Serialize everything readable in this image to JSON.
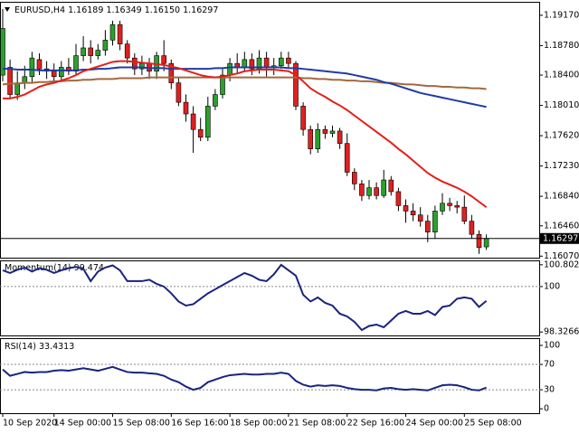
{
  "chart_data": [
    {
      "type": "candlestick",
      "title": "EURUSD,H4",
      "value_labels": {
        "open": "1.16189",
        "high": "1.16349",
        "low": "1.16150",
        "close": "1.16297"
      },
      "categories": [
        "10 Sep 2020",
        null,
        null,
        null,
        null,
        null,
        null,
        "14 Sep 00:00",
        null,
        null,
        null,
        null,
        null,
        null,
        null,
        "15 Sep 08:00",
        null,
        null,
        null,
        null,
        null,
        null,
        null,
        "16 Sep 16:00",
        null,
        null,
        null,
        null,
        null,
        null,
        null,
        "18 Sep 00:00",
        null,
        null,
        null,
        null,
        null,
        null,
        null,
        "21 Sep 08:00",
        null,
        null,
        null,
        null,
        null,
        null,
        null,
        "22 Sep 16:00",
        null,
        null,
        null,
        null,
        null,
        null,
        null,
        "24 Sep 00:00",
        null,
        null,
        null,
        null,
        null,
        null,
        null,
        "25 Sep 08:00",
        null,
        null,
        null
      ],
      "open": [
        1.184,
        1.185,
        1.1815,
        1.183,
        1.1838,
        1.186,
        1.1848,
        1.1845,
        1.1838,
        1.185,
        1.1845,
        1.1865,
        1.1875,
        1.1865,
        1.1872,
        1.1885,
        1.1905,
        1.188,
        1.1862,
        1.1848,
        1.1855,
        1.1845,
        1.1865,
        1.1855,
        1.183,
        1.1805,
        1.179,
        1.177,
        1.176,
        1.18,
        1.1815,
        1.184,
        1.1855,
        1.185,
        1.186,
        1.1848,
        1.1862,
        1.185,
        1.1852,
        1.1862,
        1.1855,
        1.18,
        1.177,
        1.1745,
        1.177,
        1.1765,
        1.1768,
        1.1752,
        1.1715,
        1.17,
        1.1685,
        1.1695,
        1.1685,
        1.1705,
        1.169,
        1.1672,
        1.1665,
        1.166,
        1.1652,
        1.1638,
        1.1665,
        1.1675,
        1.1672,
        1.167,
        1.1652,
        1.1635,
        1.16189
      ],
      "high": [
        1.1925,
        1.186,
        1.1845,
        1.1852,
        1.187,
        1.1868,
        1.1858,
        1.1855,
        1.1858,
        1.1862,
        1.188,
        1.189,
        1.1885,
        1.188,
        1.1898,
        1.191,
        1.191,
        1.1885,
        1.1868,
        1.1865,
        1.1862,
        1.187,
        1.1885,
        1.186,
        1.1838,
        1.1815,
        1.18,
        1.1785,
        1.1812,
        1.1822,
        1.1848,
        1.1862,
        1.1868,
        1.187,
        1.1868,
        1.1872,
        1.187,
        1.1862,
        1.187,
        1.187,
        1.1858,
        1.1805,
        1.1775,
        1.1778,
        1.1775,
        1.1775,
        1.1772,
        1.1765,
        1.172,
        1.1705,
        1.1705,
        1.1702,
        1.1718,
        1.171,
        1.1695,
        1.168,
        1.1675,
        1.167,
        1.166,
        1.1672,
        1.1688,
        1.1682,
        1.1678,
        1.1685,
        1.166,
        1.164,
        1.16349
      ],
      "low": [
        1.1832,
        1.181,
        1.1808,
        1.1822,
        1.183,
        1.184,
        1.1835,
        1.1832,
        1.1832,
        1.184,
        1.184,
        1.1858,
        1.1855,
        1.186,
        1.1865,
        1.1878,
        1.1872,
        1.1855,
        1.184,
        1.184,
        1.1835,
        1.1835,
        1.1845,
        1.1822,
        1.18,
        1.178,
        1.174,
        1.1755,
        1.1755,
        1.1795,
        1.181,
        1.1832,
        1.1842,
        1.1845,
        1.184,
        1.1842,
        1.1838,
        1.184,
        1.1848,
        1.185,
        1.1795,
        1.1762,
        1.1738,
        1.174,
        1.1758,
        1.176,
        1.1745,
        1.171,
        1.1692,
        1.1678,
        1.168,
        1.168,
        1.1682,
        1.1685,
        1.1665,
        1.165,
        1.1652,
        1.1645,
        1.1625,
        1.163,
        1.166,
        1.1665,
        1.1662,
        1.1648,
        1.163,
        1.161,
        1.1615
      ],
      "close": [
        1.19,
        1.1815,
        1.183,
        1.1838,
        1.1862,
        1.1848,
        1.1845,
        1.1838,
        1.185,
        1.1845,
        1.1865,
        1.1875,
        1.1865,
        1.1872,
        1.1885,
        1.1905,
        1.188,
        1.1862,
        1.1848,
        1.1855,
        1.1845,
        1.1865,
        1.1855,
        1.183,
        1.1805,
        1.179,
        1.177,
        1.176,
        1.18,
        1.1815,
        1.184,
        1.1855,
        1.185,
        1.186,
        1.1848,
        1.1862,
        1.185,
        1.1852,
        1.1862,
        1.1855,
        1.18,
        1.177,
        1.1745,
        1.177,
        1.1765,
        1.1768,
        1.1752,
        1.1715,
        1.17,
        1.1685,
        1.1695,
        1.1685,
        1.1705,
        1.169,
        1.1672,
        1.1665,
        1.166,
        1.1652,
        1.1638,
        1.1665,
        1.1675,
        1.1672,
        1.167,
        1.1652,
        1.1635,
        1.1618,
        1.16297
      ],
      "up_color": "#2ca02c",
      "down_color": "#e02020",
      "overlays": [
        {
          "color": "#a5683d",
          "values": [
            1.1828,
            1.1829,
            1.1829,
            1.183,
            1.183,
            1.1831,
            1.1831,
            1.1832,
            1.1832,
            1.1833,
            1.1833,
            1.1834,
            1.1834,
            1.1835,
            1.1835,
            1.1835,
            1.1836,
            1.1836,
            1.1836,
            1.1836,
            1.1837,
            1.1837,
            1.1837,
            1.1837,
            1.1837,
            1.1837,
            1.1837,
            1.1837,
            1.1837,
            1.1837,
            1.1837,
            1.1837,
            1.1837,
            1.1837,
            1.1837,
            1.1837,
            1.1837,
            1.1837,
            1.1837,
            1.1837,
            1.1837,
            1.1836,
            1.1836,
            1.1835,
            1.1835,
            1.1834,
            1.1834,
            1.1833,
            1.1833,
            1.1832,
            1.1832,
            1.1831,
            1.183,
            1.183,
            1.1829,
            1.1828,
            1.1828,
            1.1827,
            1.1826,
            1.1826,
            1.1825,
            1.1825,
            1.1824,
            1.1824,
            1.1823,
            1.1823,
            1.1822
          ]
        },
        {
          "color": "#1f3ca6",
          "values": [
            1.1848,
            1.1848,
            1.1847,
            1.1847,
            1.1847,
            1.1846,
            1.1846,
            1.1846,
            1.1846,
            1.1846,
            1.1846,
            1.1847,
            1.1847,
            1.1848,
            1.1848,
            1.1849,
            1.185,
            1.185,
            1.185,
            1.185,
            1.1849,
            1.1849,
            1.1849,
            1.1848,
            1.1848,
            1.1848,
            1.1848,
            1.1848,
            1.1848,
            1.1849,
            1.1849,
            1.185,
            1.185,
            1.185,
            1.185,
            1.185,
            1.185,
            1.185,
            1.185,
            1.1849,
            1.1849,
            1.1848,
            1.1847,
            1.1846,
            1.1845,
            1.1844,
            1.1843,
            1.1842,
            1.184,
            1.1838,
            1.1836,
            1.1834,
            1.1831,
            1.1829,
            1.1826,
            1.1823,
            1.182,
            1.1817,
            1.1815,
            1.1813,
            1.1811,
            1.1809,
            1.1807,
            1.1805,
            1.1803,
            1.1801,
            1.1799
          ]
        },
        {
          "color": "#e32017",
          "values": [
            1.181,
            1.181,
            1.1812,
            1.1815,
            1.182,
            1.1825,
            1.1828,
            1.183,
            1.1833,
            1.1836,
            1.184,
            1.1845,
            1.1848,
            1.1851,
            1.1854,
            1.1857,
            1.1858,
            1.1858,
            1.1857,
            1.1856,
            1.1855,
            1.1854,
            1.1853,
            1.1851,
            1.1849,
            1.1846,
            1.1843,
            1.184,
            1.1838,
            1.1837,
            1.1838,
            1.184,
            1.1842,
            1.1845,
            1.1846,
            1.1847,
            1.1847,
            1.1847,
            1.1846,
            1.1845,
            1.184,
            1.1832,
            1.1823,
            1.1817,
            1.1812,
            1.1806,
            1.1801,
            1.1795,
            1.1788,
            1.1781,
            1.1774,
            1.1767,
            1.176,
            1.1753,
            1.1745,
            1.1738,
            1.173,
            1.1722,
            1.1714,
            1.1708,
            1.1703,
            1.1699,
            1.1695,
            1.169,
            1.1684,
            1.1677,
            1.167
          ]
        }
      ],
      "ylim": [
        1.1605,
        1.1932
      ],
      "yticks": [
        {
          "value": 1.1917,
          "label": "1.19170"
        },
        {
          "value": 1.1878,
          "label": "1.18780"
        },
        {
          "value": 1.184,
          "label": "1.18400"
        },
        {
          "value": 1.1801,
          "label": "1.18010"
        },
        {
          "value": 1.1762,
          "label": "1.17620"
        },
        {
          "value": 1.1723,
          "label": "1.17230"
        },
        {
          "value": 1.1684,
          "label": "1.16840"
        },
        {
          "value": 1.1646,
          "label": "1.16460"
        },
        {
          "value": 1.1607,
          "label": "1.16070"
        }
      ]
    },
    {
      "type": "line",
      "title": "Momentum(14)",
      "color": "#1a237e",
      "values": [
        100.6,
        100.5,
        100.62,
        100.7,
        100.55,
        100.68,
        100.62,
        100.5,
        100.6,
        100.68,
        100.72,
        100.65,
        100.2,
        100.55,
        100.7,
        100.78,
        100.6,
        100.2,
        100.2,
        100.2,
        100.25,
        100.1,
        100.0,
        99.75,
        99.45,
        99.3,
        99.35,
        99.55,
        99.75,
        99.9,
        100.05,
        100.2,
        100.35,
        100.5,
        100.4,
        100.25,
        100.2,
        100.45,
        100.8,
        100.6,
        100.4,
        99.7,
        99.45,
        99.6,
        99.4,
        99.3,
        99.0,
        98.9,
        98.7,
        98.4,
        98.55,
        98.6,
        98.5,
        98.75,
        99.0,
        99.1,
        99.0,
        99.0,
        99.1,
        98.95,
        99.25,
        99.3,
        99.55,
        99.6,
        99.55,
        99.25,
        99.474
      ],
      "levels": [
        100
      ],
      "ylim": [
        98.2,
        100.93
      ],
      "yticks": [
        100.8021,
        100,
        98.3266
      ]
    },
    {
      "type": "line",
      "title": "RSI(14)",
      "color": "#1a237e",
      "values": [
        62,
        52,
        55,
        58,
        57,
        58,
        58,
        60,
        61,
        60,
        62,
        64,
        62,
        60,
        63,
        66,
        62,
        58,
        57,
        57,
        56,
        55,
        52,
        46,
        42,
        35,
        30,
        33,
        42,
        46,
        50,
        53,
        54,
        55,
        54,
        54,
        55,
        55,
        57,
        55,
        44,
        38,
        35,
        37,
        36,
        37,
        36,
        33,
        31,
        30,
        30,
        29,
        32,
        33,
        31,
        30,
        31,
        30,
        29,
        33,
        37,
        38,
        37,
        34,
        30,
        29,
        33.4313
      ],
      "levels": [
        30,
        70
      ],
      "ylim": [
        -7,
        110
      ],
      "yticks": [
        100,
        70,
        30,
        0
      ]
    }
  ]
}
